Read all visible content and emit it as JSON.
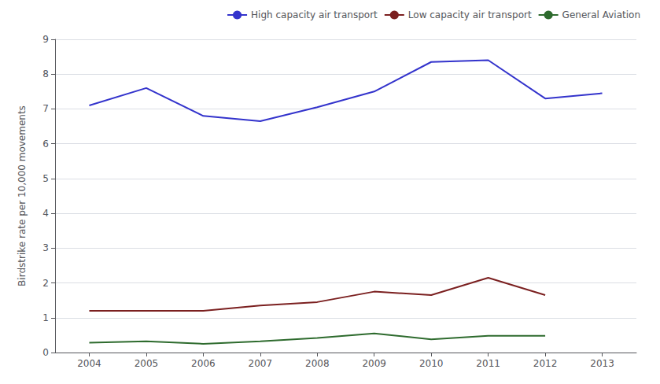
{
  "chart_data": {
    "type": "line",
    "x": [
      2004,
      2005,
      2006,
      2007,
      2008,
      2009,
      2010,
      2011,
      2012,
      2013
    ],
    "xlim": [
      2003.4,
      2013.6
    ],
    "xticks": [
      2004,
      2005,
      2006,
      2007,
      2008,
      2009,
      2010,
      2011,
      2012,
      2013
    ],
    "ylabel": "Birdstrike rate per 10,000 movements",
    "ylim": [
      0,
      9
    ],
    "yticks": [
      0,
      1,
      2,
      3,
      4,
      5,
      6,
      7,
      8,
      9
    ],
    "grid": true,
    "legend": "upper right",
    "series": [
      {
        "name": "High capacity air transport",
        "color": "#3333CC",
        "values": [
          7.1,
          7.6,
          6.8,
          6.65,
          7.05,
          7.5,
          8.35,
          8.4,
          7.3,
          7.45
        ]
      },
      {
        "name": "Low capacity air transport",
        "color": "#7B2020",
        "values": [
          1.2,
          1.2,
          1.2,
          1.35,
          1.45,
          1.75,
          1.65,
          2.15,
          1.65,
          null
        ]
      },
      {
        "name": "General Aviation",
        "color": "#2E6B2E",
        "values": [
          0.28,
          0.32,
          0.25,
          0.32,
          0.42,
          0.55,
          0.38,
          0.48,
          0.48,
          null
        ]
      }
    ]
  }
}
